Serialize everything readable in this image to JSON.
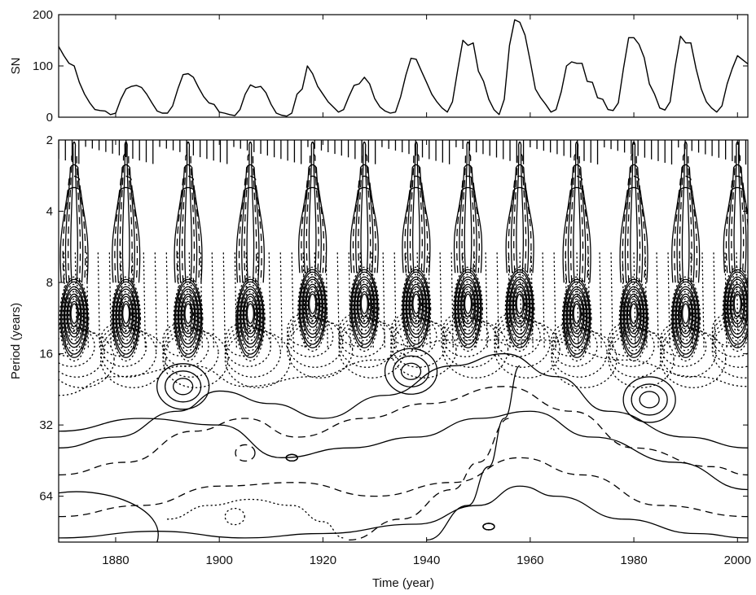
{
  "chart_data": [
    {
      "id": "sunspot_series",
      "type": "line",
      "title": "",
      "xlabel": "",
      "ylabel": "SN",
      "xlim": [
        1869,
        2002
      ],
      "ylim": [
        0,
        200
      ],
      "yticks": [
        0,
        100,
        200
      ],
      "series": [
        {
          "x": [
            1869,
            1870,
            1871,
            1872,
            1873,
            1874,
            1875,
            1876,
            1877,
            1878,
            1879,
            1880,
            1881,
            1882,
            1883,
            1884,
            1885,
            1886,
            1887,
            1888,
            1889,
            1890,
            1891,
            1892,
            1893,
            1894,
            1895,
            1896,
            1897,
            1898,
            1899,
            1900,
            1901,
            1902,
            1903,
            1904,
            1905,
            1906,
            1907,
            1908,
            1909,
            1910,
            1911,
            1912,
            1913,
            1914,
            1915,
            1916,
            1917,
            1918,
            1919,
            1920,
            1921,
            1922,
            1923,
            1924,
            1925,
            1926,
            1927,
            1928,
            1929,
            1930,
            1931,
            1932,
            1933,
            1934,
            1935,
            1936,
            1937,
            1938,
            1939,
            1940,
            1941,
            1942,
            1943,
            1944,
            1945,
            1946,
            1947,
            1948,
            1949,
            1950,
            1951,
            1952,
            1953,
            1954,
            1955,
            1956,
            1957,
            1958,
            1959,
            1960,
            1961,
            1962,
            1963,
            1964,
            1965,
            1966,
            1967,
            1968,
            1969,
            1970,
            1971,
            1972,
            1973,
            1974,
            1975,
            1976,
            1977,
            1978,
            1979,
            1980,
            1981,
            1982,
            1983,
            1984,
            1985,
            1986,
            1987,
            1988,
            1989,
            1990,
            1991,
            1992,
            1993,
            1994,
            1995,
            1996,
            1997,
            1998,
            1999,
            2000,
            2001,
            2002
          ],
          "values": [
            138,
            120,
            105,
            100,
            68,
            45,
            28,
            15,
            13,
            12,
            5,
            8,
            35,
            55,
            60,
            62,
            58,
            45,
            28,
            12,
            8,
            8,
            22,
            55,
            83,
            85,
            78,
            58,
            40,
            28,
            25,
            10,
            8,
            5,
            3,
            15,
            45,
            63,
            58,
            60,
            48,
            25,
            8,
            4,
            2,
            8,
            45,
            55,
            100,
            85,
            60,
            45,
            30,
            20,
            10,
            15,
            40,
            62,
            65,
            78,
            65,
            36,
            20,
            12,
            8,
            10,
            40,
            82,
            115,
            113,
            90,
            68,
            45,
            30,
            18,
            10,
            30,
            92,
            150,
            140,
            145,
            90,
            70,
            35,
            15,
            5,
            35,
            140,
            190,
            185,
            160,
            110,
            55,
            38,
            25,
            10,
            15,
            50,
            100,
            108,
            105,
            105,
            70,
            68,
            38,
            35,
            15,
            13,
            28,
            95,
            155,
            155,
            142,
            116,
            65,
            45,
            18,
            14,
            30,
            100,
            158,
            145,
            145,
            95,
            55,
            30,
            18,
            10,
            22,
            65,
            95,
            120,
            112,
            104
          ]
        }
      ]
    },
    {
      "id": "wavelet_power",
      "type": "heatmap",
      "title": "",
      "xlabel": "Time (year)",
      "ylabel": "Period (years)",
      "xlim": [
        1869,
        2002
      ],
      "ylim": [
        2,
        100
      ],
      "yscale": "log2",
      "xticks": [
        1880,
        1900,
        1920,
        1940,
        1960,
        1980,
        2000
      ],
      "yticks": [
        2,
        4,
        8,
        16,
        32,
        64
      ],
      "contour_styles": [
        "solid",
        "dashed",
        "dotted"
      ],
      "power_bands": [
        {
          "x": 1872,
          "period": 11
        },
        {
          "x": 1882,
          "period": 11
        },
        {
          "x": 1894,
          "period": 11
        },
        {
          "x": 1906,
          "period": 11
        },
        {
          "x": 1918,
          "period": 10
        },
        {
          "x": 1928,
          "period": 10
        },
        {
          "x": 1938,
          "period": 10
        },
        {
          "x": 1948,
          "period": 10
        },
        {
          "x": 1958,
          "period": 10
        },
        {
          "x": 1969,
          "period": 11
        },
        {
          "x": 1980,
          "period": 11
        },
        {
          "x": 1990,
          "period": 11
        },
        {
          "x": 2000,
          "period": 10
        }
      ],
      "islands": [
        {
          "x": 1893,
          "period": 22,
          "style": "solid"
        },
        {
          "x": 1937,
          "period": 19,
          "style": "solid"
        },
        {
          "x": 1983,
          "period": 25,
          "style": "solid"
        },
        {
          "x": 1914,
          "period": 44,
          "style": "solid"
        },
        {
          "x": 1952,
          "period": 86,
          "style": "solid"
        },
        {
          "x": 1905,
          "period": 42,
          "style": "dashed"
        },
        {
          "x": 1903,
          "period": 78,
          "style": "dotted"
        }
      ]
    }
  ]
}
